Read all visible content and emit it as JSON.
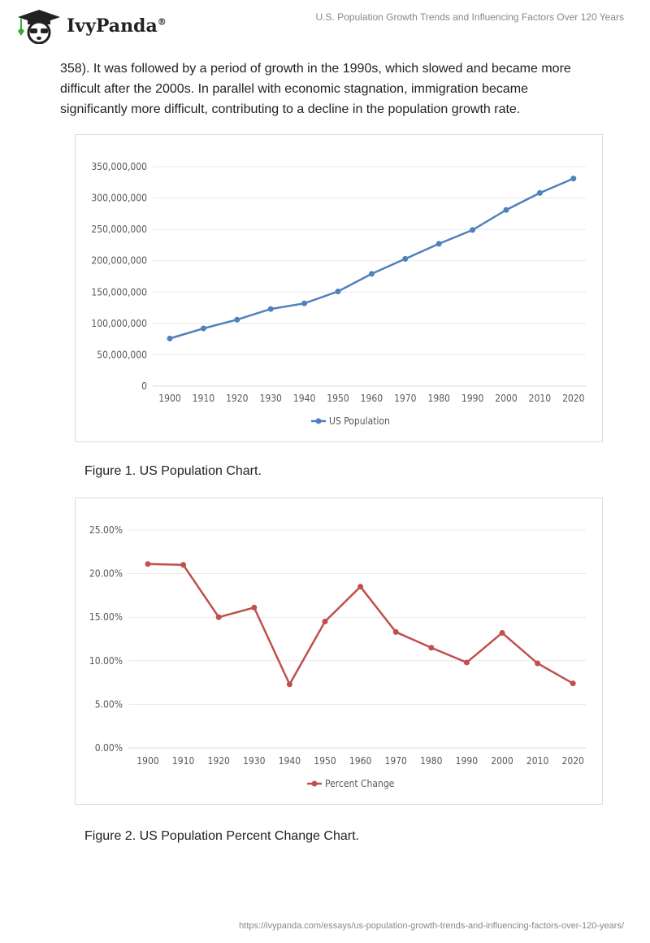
{
  "header": {
    "logo_text": "IvyPanda",
    "logo_mark": "®",
    "title": "U.S. Population Growth Trends and Influencing Factors Over 120 Years"
  },
  "paragraph": "358). It was followed by a period of growth in the 1990s, which slowed and became more difficult after the 2000s. In parallel with economic stagnation, immigration became significantly more difficult, contributing to a decline in the population growth rate.",
  "captions": [
    "Figure 1. US Population Chart.",
    "Figure 2. US Population Percent Change Chart."
  ],
  "footer_url": "https://ivypanda.com/essays/us-population-growth-trends-and-influencing-factors-over-120-years/",
  "chart_data": [
    {
      "type": "line",
      "categories": [
        "1900",
        "1910",
        "1920",
        "1930",
        "1940",
        "1950",
        "1960",
        "1970",
        "1980",
        "1990",
        "2000",
        "2010",
        "2020"
      ],
      "series": [
        {
          "name": "US Population",
          "values": [
            76000000,
            92000000,
            106000000,
            123000000,
            132000000,
            151000000,
            179000000,
            203000000,
            227000000,
            249000000,
            281000000,
            308000000,
            331000000
          ],
          "color": "#4f81bd"
        }
      ],
      "ylim": [
        0,
        350000000
      ],
      "yticks": [
        "0",
        "50,000,000",
        "100,000,000",
        "150,000,000",
        "200,000,000",
        "250,000,000",
        "300,000,000",
        "350,000,000"
      ],
      "grid": true,
      "legend": "bottom"
    },
    {
      "type": "line",
      "categories": [
        "1900",
        "1910",
        "1920",
        "1930",
        "1940",
        "1950",
        "1960",
        "1970",
        "1980",
        "1990",
        "2000",
        "2010",
        "2020"
      ],
      "series": [
        {
          "name": "Percent Change",
          "values": [
            21.1,
            21.0,
            15.0,
            16.1,
            7.3,
            14.5,
            18.5,
            13.3,
            11.5,
            9.8,
            13.2,
            9.7,
            7.4
          ],
          "color": "#c0504d"
        }
      ],
      "ylim": [
        0,
        25
      ],
      "yticks": [
        "0.00%",
        "5.00%",
        "10.00%",
        "15.00%",
        "20.00%",
        "25.00%"
      ],
      "grid": true,
      "legend": "bottom"
    }
  ]
}
